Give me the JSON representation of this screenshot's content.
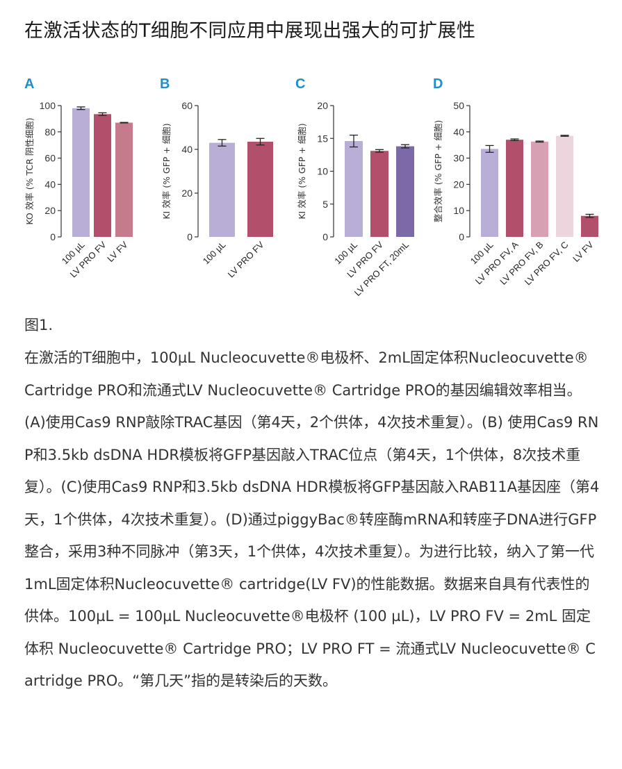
{
  "title": "在激活状态的T细胞不同应用中展现出强大的可扩展性",
  "figure_label": "图1.",
  "caption": "在激活的T细胞中，100µL Nucleocuvette®电极杯、2mL固定体积Nucleocuvette® Cartridge PRO和流通式LV Nucleocuvette® Cartridge PRO的基因编辑效率相当。(A)使用Cas9 RNP敲除TRAC基因（第4天，2个供体，4次技术重复）。(B) 使用Cas9 RNP和3.5kb dsDNA HDR模板将GFP基因敲入TRAC位点（第4天，1个供体，8次技术重复）。(C)使用Cas9 RNP和3.5kb dsDNA HDR模板将GFP基因敲入RAB11A基因座（第4天，1个供体，4次技术重复）。(D)通过piggyBac®转座酶mRNA和转座子DNA进行GFP整合，采用3种不同脉冲（第3天，1个供体，4次技术重复）。为进行比较，纳入了第一代1mL固定体积Nucleocuvette® cartridge(LV FV)的性能数据。数据来自具有代表性的供体。100µL = 100µL Nucleocuvette®电极杯 (100 µL)，LV PRO FV = 2mL 固定体积 Nucleocuvette® Cartridge PRO；LV PRO FT = 流通式LV Nucleocuvette® Cartridge PRO。“第几天”指的是转染后的天数。",
  "colors": {
    "panel_label": "#1f8ec9",
    "axis": "#333333",
    "error_bar": "#222222"
  },
  "chart_data": [
    {
      "panel": "A",
      "type": "bar",
      "ylabel": "KO 效率 (% TCR 阴性细胞)",
      "ylim": [
        0,
        100
      ],
      "yticks": [
        0,
        20,
        40,
        60,
        80,
        100
      ],
      "categories": [
        "100 µL",
        "LV PRO FV",
        "LV FV"
      ],
      "values": [
        98,
        93.5,
        87
      ],
      "errors": [
        1,
        1,
        0.2
      ],
      "bar_colors": [
        "#b9afd6",
        "#b2506b",
        "#c67b8c"
      ]
    },
    {
      "panel": "B",
      "type": "bar",
      "ylabel": "KI 效率 (% GFP + 细胞)",
      "ylim": [
        0,
        60
      ],
      "yticks": [
        0,
        20,
        40,
        60
      ],
      "categories": [
        "100 µL",
        "LV PRO FV"
      ],
      "values": [
        43,
        43.5
      ],
      "errors": [
        1.5,
        1.5
      ],
      "bar_colors": [
        "#b9afd6",
        "#b2506b"
      ]
    },
    {
      "panel": "C",
      "type": "bar",
      "ylabel": "KI 效率 (% GFP + 细胞)",
      "ylim": [
        0,
        20
      ],
      "yticks": [
        0,
        5,
        10,
        15,
        20
      ],
      "categories": [
        "100 µL",
        "LV PRO FV",
        "LV PRO FT, 20mL"
      ],
      "values": [
        14.6,
        13.1,
        13.8
      ],
      "errors": [
        0.9,
        0.2,
        0.25
      ],
      "bar_colors": [
        "#b9afd6",
        "#b2506b",
        "#7b6aa7"
      ]
    },
    {
      "panel": "D",
      "type": "bar",
      "ylabel": "整合效率 (% GFP + 细胞)",
      "ylim": [
        0,
        50
      ],
      "yticks": [
        0,
        10,
        20,
        30,
        40,
        50
      ],
      "categories": [
        "100 µL",
        "LV PRO FV, A",
        "LV PRO FV, B",
        "LV PRO FV, C",
        "LV FV"
      ],
      "values": [
        33.5,
        37,
        36.3,
        38.5,
        8
      ],
      "errors": [
        1.3,
        0.3,
        0.2,
        0.2,
        0.6
      ],
      "bar_colors": [
        "#b9afd6",
        "#b2506b",
        "#d7a1b3",
        "#ecd5dd",
        "#b2506b"
      ]
    }
  ]
}
